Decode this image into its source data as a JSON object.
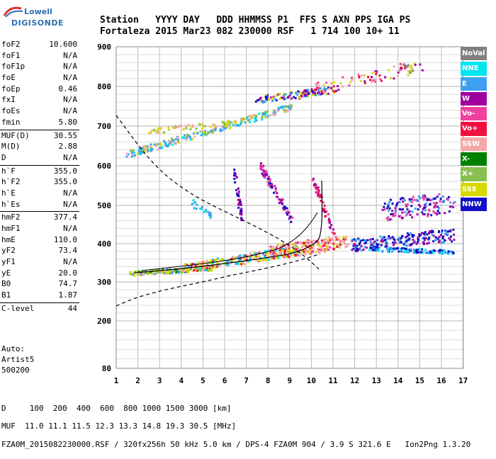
{
  "logo": {
    "top": "Lowell",
    "bottom": "DIGISONDE"
  },
  "header": {
    "line1": "Station   YYYY DAY   DDD HHMMSS P1  FFS S AXN PPS IGA PS",
    "line2": "Fortaleza 2015 Mar23 082 230000 RSF   1 714 100 10+ 11"
  },
  "params": [
    {
      "label": "foF2",
      "value": "10.600"
    },
    {
      "label": "foF1",
      "value": "N/A"
    },
    {
      "label": "foF1p",
      "value": "N/A"
    },
    {
      "label": "foE",
      "value": "N/A"
    },
    {
      "label": "foEp",
      "value": "0.46"
    },
    {
      "label": "fxI",
      "value": "N/A"
    },
    {
      "label": "foEs",
      "value": "N/A"
    },
    {
      "label": "fmin",
      "value": "5.80"
    },
    {
      "label": "MUF(D)",
      "value": "30.55"
    },
    {
      "label": "M(D)",
      "value": "2.88"
    },
    {
      "label": "D",
      "value": "N/A"
    },
    {
      "label": "h`F",
      "value": "355.0"
    },
    {
      "label": "h`F2",
      "value": "355.0"
    },
    {
      "label": "h`E",
      "value": "N/A"
    },
    {
      "label": "h`Es",
      "value": "N/A"
    },
    {
      "label": "hmF2",
      "value": "377.4"
    },
    {
      "label": "hmF1",
      "value": "N/A"
    },
    {
      "label": "hmE",
      "value": "110.0"
    },
    {
      "label": "yF2",
      "value": "73.4"
    },
    {
      "label": "yF1",
      "value": "N/A"
    },
    {
      "label": "yE",
      "value": "20.0"
    },
    {
      "label": "B0",
      "value": "74.7"
    },
    {
      "label": "B1",
      "value": "1.87"
    },
    {
      "label": "C-level",
      "value": "44"
    }
  ],
  "auto": {
    "line1": "Auto:",
    "line2": "Artist5",
    "line3": "500200"
  },
  "axes": {
    "y_ticks": [
      "900",
      "800",
      "700",
      "600",
      "500",
      "400",
      "300",
      "200",
      "80"
    ],
    "x_ticks": [
      "1",
      "2",
      "3",
      "4",
      "5",
      "6",
      "7",
      "8",
      "9",
      "10",
      "11",
      "12",
      "13",
      "14",
      "15",
      "16",
      "17"
    ]
  },
  "legend": [
    {
      "label": "NoVal",
      "color": "#808080"
    },
    {
      "label": "NNE",
      "color": "#00e5f0"
    },
    {
      "label": "E",
      "color": "#3fa0f0"
    },
    {
      "label": "W",
      "color": "#a000a0"
    },
    {
      "label": "Vo-",
      "color": "#f040a0"
    },
    {
      "label": "Vo+",
      "color": "#f01040"
    },
    {
      "label": "SSW",
      "color": "#f4a8a8"
    },
    {
      "label": "X-",
      "color": "#008000"
    },
    {
      "label": "X+",
      "color": "#88c050"
    },
    {
      "label": "SSE",
      "color": "#d8d800"
    },
    {
      "label": "NNW",
      "color": "#1010c8"
    }
  ],
  "footer": {
    "line1": "D     100  200  400  600  800 1000 1500 3000 [km]",
    "line2": "MUF  11.0 11.1 11.5 12.3 13.3 14.8 19.3 30.5 [MHz]",
    "line3": "FZA0M_2015082230000.RSF / 320fx256h 50 kHz 5.0 km / DPS-4 FZA0M 904 / 3.9 S 321.6 E   Ion2Png 1.3.20"
  }
}
